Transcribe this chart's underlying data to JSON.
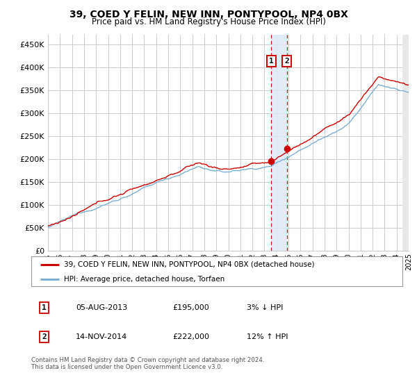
{
  "title1": "39, COED Y FELIN, NEW INN, PONTYPOOL, NP4 0BX",
  "title2": "Price paid vs. HM Land Registry's House Price Index (HPI)",
  "legend_line1": "39, COED Y FELIN, NEW INN, PONTYPOOL, NP4 0BX (detached house)",
  "legend_line2": "HPI: Average price, detached house, Torfaen",
  "annotation1_label": "1",
  "annotation1_date": "05-AUG-2013",
  "annotation1_price": "£195,000",
  "annotation1_hpi": "3% ↓ HPI",
  "annotation2_label": "2",
  "annotation2_date": "14-NOV-2014",
  "annotation2_price": "£222,000",
  "annotation2_hpi": "12% ↑ HPI",
  "footnote1": "Contains HM Land Registry data © Crown copyright and database right 2024.",
  "footnote2": "This data is licensed under the Open Government Licence v3.0.",
  "ylim_min": 0,
  "ylim_max": 470000,
  "yticks": [
    0,
    50000,
    100000,
    150000,
    200000,
    250000,
    300000,
    350000,
    400000,
    450000
  ],
  "ytick_labels": [
    "£0",
    "£50K",
    "£100K",
    "£150K",
    "£200K",
    "£250K",
    "£300K",
    "£350K",
    "£400K",
    "£450K"
  ],
  "xlim_min": 1995,
  "xlim_max": 2025,
  "sale1_x": 2013.58,
  "sale1_y": 195000,
  "sale2_x": 2014.87,
  "sale2_y": 222000,
  "hpi_color": "#7bafd4",
  "price_color": "#cc0000",
  "annotation_color": "#cc0000",
  "shaded_color": "#dce9f5",
  "grid_color": "#cccccc",
  "bg_color": "#ffffff",
  "hatch_color": "#e8e8e8"
}
